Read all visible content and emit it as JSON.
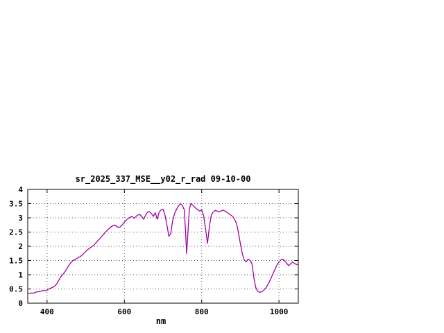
{
  "chart_data": {
    "type": "line",
    "title": "sr_2025_337_MSE__y02_r_rad 09-10-00",
    "xlabel": "nm",
    "xlim": [
      350,
      1050
    ],
    "ylim": [
      0,
      4
    ],
    "xticks": [
      400,
      600,
      800,
      1000
    ],
    "yticks": [
      0,
      0.5,
      1,
      1.5,
      2,
      2.5,
      3,
      3.5,
      4
    ],
    "grid": true,
    "legend": false,
    "line_color": "#a000a0",
    "series": [
      {
        "points": [
          [
            350,
            0.33
          ],
          [
            355,
            0.34
          ],
          [
            360,
            0.36
          ],
          [
            365,
            0.35
          ],
          [
            370,
            0.38
          ],
          [
            375,
            0.4
          ],
          [
            380,
            0.41
          ],
          [
            385,
            0.43
          ],
          [
            390,
            0.45
          ],
          [
            395,
            0.44
          ],
          [
            400,
            0.46
          ],
          [
            405,
            0.5
          ],
          [
            410,
            0.53
          ],
          [
            415,
            0.56
          ],
          [
            420,
            0.6
          ],
          [
            425,
            0.68
          ],
          [
            430,
            0.8
          ],
          [
            435,
            0.92
          ],
          [
            440,
            1.0
          ],
          [
            445,
            1.08
          ],
          [
            450,
            1.18
          ],
          [
            455,
            1.3
          ],
          [
            460,
            1.4
          ],
          [
            465,
            1.48
          ],
          [
            470,
            1.52
          ],
          [
            475,
            1.55
          ],
          [
            480,
            1.6
          ],
          [
            485,
            1.63
          ],
          [
            490,
            1.68
          ],
          [
            495,
            1.75
          ],
          [
            500,
            1.82
          ],
          [
            505,
            1.88
          ],
          [
            510,
            1.93
          ],
          [
            515,
            1.98
          ],
          [
            520,
            2.03
          ],
          [
            525,
            2.1
          ],
          [
            530,
            2.18
          ],
          [
            535,
            2.25
          ],
          [
            540,
            2.33
          ],
          [
            545,
            2.4
          ],
          [
            550,
            2.48
          ],
          [
            555,
            2.55
          ],
          [
            560,
            2.62
          ],
          [
            565,
            2.68
          ],
          [
            570,
            2.72
          ],
          [
            575,
            2.75
          ],
          [
            580,
            2.7
          ],
          [
            585,
            2.66
          ],
          [
            590,
            2.69
          ],
          [
            595,
            2.76
          ],
          [
            600,
            2.85
          ],
          [
            605,
            2.92
          ],
          [
            610,
            2.98
          ],
          [
            615,
            3.02
          ],
          [
            620,
            3.05
          ],
          [
            625,
            2.98
          ],
          [
            630,
            3.05
          ],
          [
            635,
            3.1
          ],
          [
            640,
            3.12
          ],
          [
            645,
            3.04
          ],
          [
            650,
            2.95
          ],
          [
            655,
            3.1
          ],
          [
            660,
            3.2
          ],
          [
            665,
            3.22
          ],
          [
            670,
            3.15
          ],
          [
            675,
            3.05
          ],
          [
            680,
            3.18
          ],
          [
            685,
            2.95
          ],
          [
            690,
            3.2
          ],
          [
            695,
            3.28
          ],
          [
            700,
            3.3
          ],
          [
            705,
            3.1
          ],
          [
            710,
            2.75
          ],
          [
            715,
            2.35
          ],
          [
            720,
            2.45
          ],
          [
            725,
            2.9
          ],
          [
            730,
            3.15
          ],
          [
            735,
            3.3
          ],
          [
            740,
            3.42
          ],
          [
            745,
            3.5
          ],
          [
            750,
            3.44
          ],
          [
            755,
            3.28
          ],
          [
            758,
            2.6
          ],
          [
            761,
            1.75
          ],
          [
            764,
            2.4
          ],
          [
            768,
            3.3
          ],
          [
            772,
            3.5
          ],
          [
            776,
            3.46
          ],
          [
            780,
            3.4
          ],
          [
            785,
            3.34
          ],
          [
            790,
            3.28
          ],
          [
            795,
            3.24
          ],
          [
            800,
            3.28
          ],
          [
            805,
            3.08
          ],
          [
            810,
            2.6
          ],
          [
            815,
            2.1
          ],
          [
            820,
            2.7
          ],
          [
            825,
            3.1
          ],
          [
            830,
            3.2
          ],
          [
            835,
            3.26
          ],
          [
            840,
            3.24
          ],
          [
            845,
            3.21
          ],
          [
            850,
            3.24
          ],
          [
            855,
            3.27
          ],
          [
            860,
            3.24
          ],
          [
            865,
            3.2
          ],
          [
            870,
            3.15
          ],
          [
            875,
            3.1
          ],
          [
            880,
            3.05
          ],
          [
            885,
            2.95
          ],
          [
            890,
            2.8
          ],
          [
            895,
            2.5
          ],
          [
            900,
            2.1
          ],
          [
            905,
            1.75
          ],
          [
            910,
            1.52
          ],
          [
            915,
            1.45
          ],
          [
            920,
            1.55
          ],
          [
            925,
            1.5
          ],
          [
            930,
            1.4
          ],
          [
            935,
            0.9
          ],
          [
            940,
            0.55
          ],
          [
            945,
            0.42
          ],
          [
            950,
            0.38
          ],
          [
            955,
            0.4
          ],
          [
            960,
            0.45
          ],
          [
            965,
            0.52
          ],
          [
            970,
            0.62
          ],
          [
            975,
            0.75
          ],
          [
            980,
            0.9
          ],
          [
            985,
            1.05
          ],
          [
            990,
            1.2
          ],
          [
            995,
            1.35
          ],
          [
            1000,
            1.45
          ],
          [
            1005,
            1.52
          ],
          [
            1010,
            1.55
          ],
          [
            1015,
            1.48
          ],
          [
            1020,
            1.4
          ],
          [
            1025,
            1.32
          ],
          [
            1030,
            1.38
          ],
          [
            1035,
            1.45
          ],
          [
            1040,
            1.4
          ],
          [
            1045,
            1.36
          ],
          [
            1050,
            1.35
          ]
        ]
      }
    ]
  }
}
